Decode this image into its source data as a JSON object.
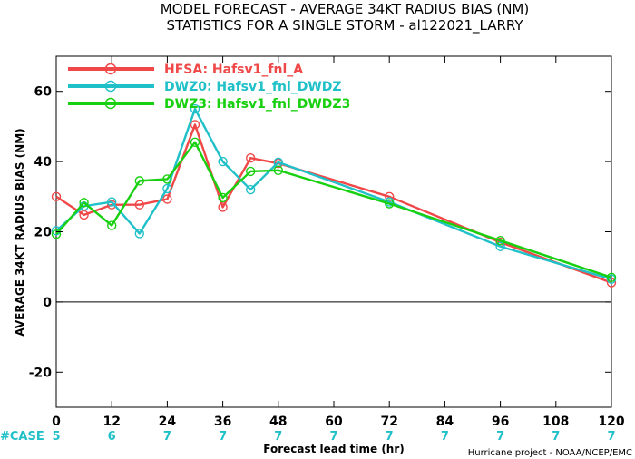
{
  "chart_data": {
    "type": "line",
    "title": "MODEL FORECAST - AVERAGE 34KT RADIUS BIAS (NM)",
    "subtitle": "STATISTICS FOR A SINGLE STORM - al122021_LARRY",
    "xlabel": "Forecast lead time (hr)",
    "ylabel": "AVERAGE 34KT RADIUS BIAS (NM)",
    "xlim": [
      0,
      120
    ],
    "ylim": [
      -30,
      70
    ],
    "x_ticks": [
      0,
      12,
      24,
      36,
      48,
      60,
      72,
      84,
      96,
      108,
      120
    ],
    "x_tick_labels": [
      "0",
      "12",
      "24",
      "36",
      "48",
      "60",
      "72",
      "84",
      "96",
      "108",
      "120"
    ],
    "y_ticks": [
      -20,
      0,
      20,
      40,
      60
    ],
    "y_tick_labels": [
      "-20",
      "0",
      "20",
      "40",
      "60"
    ],
    "zero_line": true,
    "grid": false,
    "legend_position": "top-left",
    "series": [
      {
        "name": "HFSA: Hafsv1_fnl_A",
        "color": "#f04848",
        "x": [
          0,
          6,
          12,
          18,
          24,
          30,
          36,
          42,
          48,
          72,
          96,
          120
        ],
        "y": [
          30.0,
          24.8,
          27.7,
          27.7,
          29.3,
          50.5,
          27.0,
          41.0,
          39.5,
          30.0,
          17.0,
          5.5
        ]
      },
      {
        "name": "DWZ0: Hafsv1_fnl_DWDZ",
        "color": "#20c0c8",
        "x": [
          0,
          6,
          12,
          18,
          24,
          30,
          36,
          42,
          48,
          72,
          96,
          120
        ],
        "y": [
          20.3,
          27.3,
          28.5,
          19.5,
          32.3,
          55.0,
          40.0,
          32.0,
          39.8,
          28.5,
          15.8,
          6.5
        ]
      },
      {
        "name": "DWZ3: Hafsv1_fnl_DWDZ3",
        "color": "#18d010",
        "x": [
          0,
          6,
          12,
          18,
          24,
          30,
          36,
          42,
          48,
          72,
          96,
          120
        ],
        "y": [
          19.3,
          28.3,
          21.8,
          34.5,
          35.0,
          45.5,
          29.7,
          37.2,
          37.5,
          28.0,
          17.5,
          7.0
        ]
      }
    ],
    "case_counts": {
      "label": "#CASE",
      "color": "#20c0c8",
      "x": [
        0,
        12,
        24,
        36,
        48,
        60,
        72,
        84,
        96,
        108,
        120
      ],
      "values": [
        "5",
        "6",
        "7",
        "7",
        "7",
        "7",
        "7",
        "7",
        "7",
        "7",
        "7"
      ]
    },
    "credit": "Hurricane project - NOAA/NCEP/EMC"
  }
}
